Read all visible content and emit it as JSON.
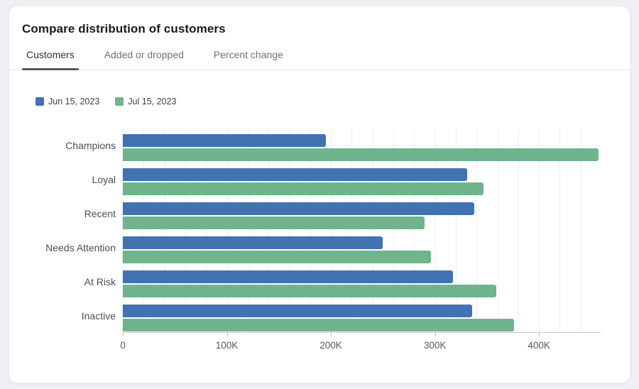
{
  "header": {
    "title": "Compare distribution of customers"
  },
  "tabs": [
    {
      "label": "Customers",
      "active": true
    },
    {
      "label": "Added or dropped",
      "active": false
    },
    {
      "label": "Percent change",
      "active": false
    }
  ],
  "legend": [
    {
      "label": "Jun 15, 2023",
      "color": "#4172b2"
    },
    {
      "label": "Jul 15, 2023",
      "color": "#6fb48d"
    }
  ],
  "chart_data": {
    "type": "bar",
    "orientation": "horizontal",
    "title": "Compare distribution of customers",
    "categories": [
      "Champions",
      "Loyal",
      "Recent",
      "Needs Attention",
      "At Risk",
      "Inactive"
    ],
    "series": [
      {
        "name": "Jun 15, 2023",
        "color": "#4172b2",
        "values": [
          195000,
          331000,
          338000,
          250000,
          317000,
          336000
        ]
      },
      {
        "name": "Jul 15, 2023",
        "color": "#6fb48d",
        "values": [
          457000,
          347000,
          290000,
          296000,
          359000,
          376000
        ]
      }
    ],
    "xlim": [
      0,
      460000
    ],
    "x_ticks": [
      {
        "value": 0,
        "label": "0"
      },
      {
        "value": 100000,
        "label": "100K"
      },
      {
        "value": 200000,
        "label": "200K"
      },
      {
        "value": 300000,
        "label": "300K"
      },
      {
        "value": 400000,
        "label": "400K"
      }
    ],
    "grid_step": 20000,
    "grid": true,
    "legend_position": "top-left",
    "xlabel": "",
    "ylabel": ""
  }
}
